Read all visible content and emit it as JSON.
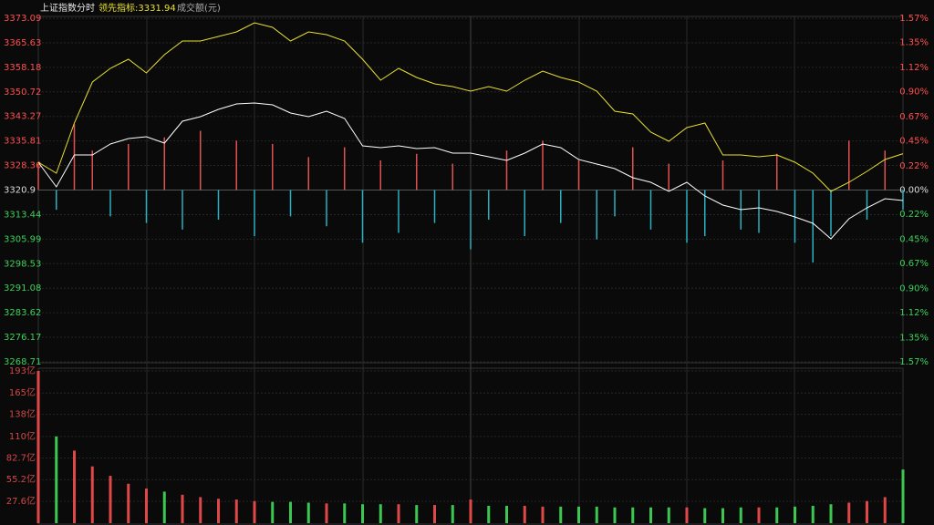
{
  "chart_data": [
    {
      "type": "line",
      "title": "上证指数",
      "period": "分时",
      "indicator_label": "领先指标:3331.94",
      "x": [
        0,
        5,
        10,
        15,
        20,
        25,
        30,
        35,
        40,
        45,
        50,
        55,
        60,
        65,
        70,
        75,
        80,
        85,
        90,
        95,
        100,
        105,
        110,
        115,
        120,
        125,
        130,
        135,
        140,
        145,
        150,
        155,
        160,
        165,
        170,
        175,
        180,
        185,
        190,
        195,
        200,
        205,
        210,
        215,
        220,
        225,
        230,
        235,
        240
      ],
      "xlim": [
        0,
        240
      ],
      "ylim": [
        3268.71,
        3373.09
      ],
      "yticks": [
        3373.09,
        3365.63,
        3358.18,
        3350.72,
        3343.27,
        3335.81,
        3328.36,
        3320.9,
        3313.44,
        3305.99,
        3298.53,
        3291.08,
        3283.62,
        3276.17,
        3268.71
      ],
      "base_close": 3320.9,
      "up_color": "#ff5050",
      "down_color": "#3cd15a",
      "base_color": "#dddddd",
      "y2lim": [
        -1.57,
        1.57
      ],
      "y2ticks": [
        {
          "value": 1.57,
          "label": "1.57%"
        },
        {
          "value": 1.35,
          "label": "1.35%"
        },
        {
          "value": 1.12,
          "label": "1.12%"
        },
        {
          "value": 0.9,
          "label": "0.90%"
        },
        {
          "value": 0.67,
          "label": "0.67%"
        },
        {
          "value": 0.45,
          "label": "0.45%"
        },
        {
          "value": 0.22,
          "label": "0.22%"
        },
        {
          "value": 0,
          "label": "0.00%"
        },
        {
          "value": -0.22,
          "label": "0.22%"
        },
        {
          "value": -0.45,
          "label": "0.45%"
        },
        {
          "value": -0.67,
          "label": "0.67%"
        },
        {
          "value": -0.9,
          "label": "0.90%"
        },
        {
          "value": -1.12,
          "label": "1.12%"
        },
        {
          "value": -1.35,
          "label": "1.35%"
        },
        {
          "value": -1.57,
          "label": "1.57%"
        }
      ],
      "series": [
        {
          "color": "#ffffff",
          "values": [
            3329.34,
            3321.87,
            3331.56,
            3331.56,
            3334.88,
            3336.54,
            3337.1,
            3335.16,
            3341.8,
            3343.19,
            3345.4,
            3347.06,
            3347.34,
            3346.79,
            3344.3,
            3343.19,
            3344.85,
            3342.63,
            3334.33,
            3333.77,
            3334.33,
            3333.5,
            3333.77,
            3332.11,
            3332.11,
            3331.01,
            3329.9,
            3332.11,
            3334.88,
            3333.77,
            3330.18,
            3328.79,
            3327.41,
            3324.64,
            3323.25,
            3320.48,
            3323.25,
            3319.1,
            3316.33,
            3314.95,
            3315.5,
            3314.39,
            3312.73,
            3310.79,
            3306.09,
            3312.18,
            3315.5,
            3318.27,
            3317.72
          ]
        },
        {
          "color": "#e8e030",
          "values": [
            3329.34,
            3326.02,
            3341.25,
            3353.71,
            3357.86,
            3360.63,
            3356.48,
            3362.02,
            3366.17,
            3366.17,
            3367.55,
            3368.94,
            3371.71,
            3370.32,
            3366.17,
            3368.94,
            3368.11,
            3366.17,
            3360.63,
            3354.26,
            3357.86,
            3355.09,
            3353.16,
            3352.32,
            3350.94,
            3352.32,
            3350.94,
            3354.26,
            3357.04,
            3355.09,
            3353.71,
            3350.94,
            3344.85,
            3344.02,
            3338.48,
            3335.71,
            3339.87,
            3341.25,
            3331.56,
            3331.56,
            3331.01,
            3331.56,
            3329.34,
            3326.02,
            3320.48,
            3323.25,
            3326.57,
            3330.17,
            3331.94
          ]
        }
      ],
      "signal": {
        "up_color": "#e05050",
        "down_color": "#2ab0c0",
        "values": [
          8,
          -6,
          20,
          12,
          -8,
          14,
          -10,
          16,
          -12,
          18,
          -9,
          15,
          -14,
          14,
          -8,
          10,
          -11,
          13,
          -16,
          9,
          -13,
          11,
          -10,
          8,
          -18,
          -9,
          12,
          -14,
          15,
          -10,
          9,
          -15,
          -8,
          13,
          -12,
          8,
          -16,
          -14,
          9,
          -12,
          -13,
          11,
          -16,
          -22,
          -14,
          15,
          -9,
          12,
          -6
        ]
      }
    },
    {
      "type": "bar",
      "title": "成交额(元)",
      "ylim": [
        0,
        193
      ],
      "yticks": [
        {
          "value": 193,
          "label": "193亿"
        },
        {
          "value": 165,
          "label": "165亿"
        },
        {
          "value": 138,
          "label": "138亿"
        },
        {
          "value": 110,
          "label": "110亿"
        },
        {
          "value": 82.7,
          "label": "82.7亿"
        },
        {
          "value": 55.2,
          "label": "55.2亿"
        },
        {
          "value": 27.6,
          "label": "27.6亿"
        }
      ],
      "up_color": "#e04848",
      "down_color": "#3cc850",
      "values": [
        193,
        110,
        92,
        72,
        60,
        50,
        44,
        40,
        36,
        33,
        31,
        30,
        28,
        27,
        27,
        26,
        25,
        25,
        24,
        24,
        24,
        23,
        23,
        23,
        30,
        22,
        22,
        22,
        21,
        21,
        21,
        21,
        20,
        20,
        20,
        20,
        20,
        19,
        19,
        20,
        20,
        20,
        21,
        22,
        24,
        26,
        28,
        33,
        68
      ]
    }
  ]
}
